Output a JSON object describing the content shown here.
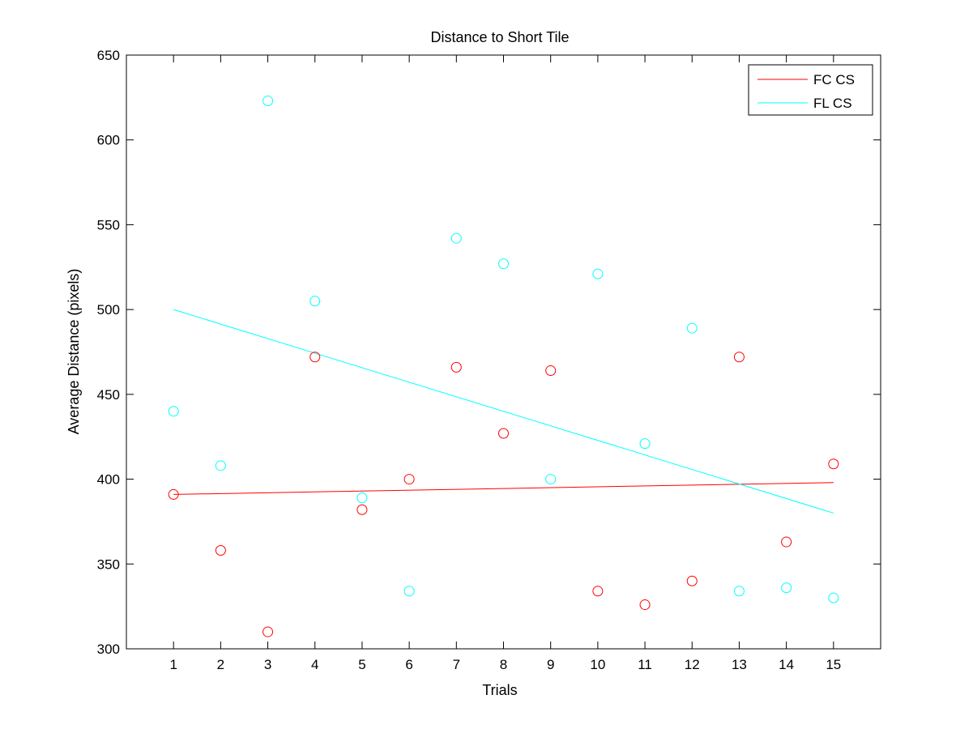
{
  "chart_data": {
    "type": "scatter",
    "title": "Distance to Short Tile",
    "xlabel": "Trials",
    "ylabel": "Average Distance (pixels)",
    "xlim": [
      0,
      16
    ],
    "ylim": [
      300,
      650
    ],
    "xticks": [
      1,
      2,
      3,
      4,
      5,
      6,
      7,
      8,
      9,
      10,
      11,
      12,
      13,
      14,
      15
    ],
    "yticks": [
      300,
      350,
      400,
      450,
      500,
      550,
      600,
      650
    ],
    "grid": false,
    "legend_position": "top-right",
    "series": [
      {
        "name": "FC CS",
        "color": "#ff0000",
        "marker": "circle",
        "x": [
          1,
          2,
          3,
          4,
          5,
          6,
          7,
          8,
          9,
          10,
          11,
          12,
          13,
          14,
          15
        ],
        "y": [
          391,
          358,
          310,
          472,
          382,
          400,
          466,
          427,
          464,
          334,
          326,
          340,
          472,
          363,
          409
        ],
        "trend": {
          "x": [
            1,
            15
          ],
          "y": [
            391,
            398
          ]
        }
      },
      {
        "name": "FL CS",
        "color": "#00ffff",
        "marker": "circle",
        "x": [
          1,
          2,
          3,
          4,
          5,
          6,
          7,
          8,
          9,
          10,
          11,
          12,
          13,
          14,
          15
        ],
        "y": [
          440,
          408,
          623,
          505,
          389,
          334,
          542,
          527,
          400,
          521,
          421,
          489,
          334,
          336,
          330
        ],
        "trend": {
          "x": [
            1,
            15
          ],
          "y": [
            500,
            380
          ]
        }
      }
    ]
  }
}
